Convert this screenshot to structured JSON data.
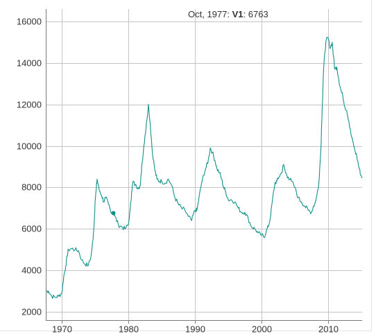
{
  "readout": {
    "date": "Oct, 1977",
    "sep1": ": ",
    "series": "V1",
    "sep2": ": ",
    "value": "6763"
  },
  "colors": {
    "line": "#12918b",
    "grid": "#c4c4c4",
    "axis": "#7a7a7a",
    "text": "#333333"
  },
  "chart_data": {
    "type": "line",
    "title": "",
    "xlabel": "",
    "ylabel": "",
    "xlim": [
      1967.6,
      2015.1
    ],
    "ylim": [
      1600,
      16600
    ],
    "x_ticks": [
      1970,
      1980,
      1990,
      2000,
      2010
    ],
    "y_ticks": [
      2000,
      4000,
      6000,
      8000,
      10000,
      12000,
      14000,
      16000
    ],
    "x_tick_labels": [
      "1970",
      "1980",
      "1990",
      "2000",
      "2010"
    ],
    "y_tick_labels": [
      "2000",
      "4000",
      "6000",
      "8000",
      "10000",
      "12000",
      "14000",
      "16000"
    ],
    "grid": true,
    "highlight": {
      "x": 1977.75,
      "y": 6763
    },
    "series": [
      {
        "points": [
          [
            1967.6,
            3000
          ],
          [
            1968.0,
            3000
          ],
          [
            1968.5,
            2750
          ],
          [
            1969.0,
            2700
          ],
          [
            1969.5,
            2750
          ],
          [
            1970.0,
            2900
          ],
          [
            1970.3,
            3700
          ],
          [
            1970.6,
            4200
          ],
          [
            1970.8,
            4700
          ],
          [
            1971.0,
            5000
          ],
          [
            1971.5,
            5050
          ],
          [
            1972.0,
            5000
          ],
          [
            1972.5,
            4950
          ],
          [
            1973.0,
            4500
          ],
          [
            1973.5,
            4300
          ],
          [
            1974.0,
            4250
          ],
          [
            1974.4,
            4700
          ],
          [
            1974.7,
            5500
          ],
          [
            1974.9,
            6500
          ],
          [
            1975.0,
            7300
          ],
          [
            1975.2,
            8000
          ],
          [
            1975.3,
            8400
          ],
          [
            1975.6,
            7900
          ],
          [
            1976.0,
            7600
          ],
          [
            1976.3,
            7300
          ],
          [
            1976.6,
            7500
          ],
          [
            1977.0,
            7200
          ],
          [
            1977.3,
            6900
          ],
          [
            1977.75,
            6763
          ],
          [
            1978.0,
            6600
          ],
          [
            1978.5,
            6200
          ],
          [
            1979.0,
            6100
          ],
          [
            1979.5,
            6000
          ],
          [
            1980.0,
            6200
          ],
          [
            1980.3,
            7000
          ],
          [
            1980.5,
            7800
          ],
          [
            1980.7,
            8300
          ],
          [
            1981.0,
            8100
          ],
          [
            1981.5,
            8000
          ],
          [
            1981.8,
            8100
          ],
          [
            1982.0,
            9000
          ],
          [
            1982.3,
            9900
          ],
          [
            1982.5,
            10500
          ],
          [
            1982.8,
            11300
          ],
          [
            1983.0,
            12000
          ],
          [
            1983.3,
            11000
          ],
          [
            1983.6,
            9700
          ],
          [
            1984.0,
            8800
          ],
          [
            1984.3,
            8400
          ],
          [
            1984.6,
            8300
          ],
          [
            1985.0,
            8300
          ],
          [
            1985.5,
            8200
          ],
          [
            1986.0,
            8400
          ],
          [
            1986.5,
            8100
          ],
          [
            1987.0,
            7500
          ],
          [
            1987.5,
            7200
          ],
          [
            1988.0,
            7000
          ],
          [
            1988.5,
            6900
          ],
          [
            1989.0,
            6600
          ],
          [
            1989.5,
            6400
          ],
          [
            1990.0,
            6900
          ],
          [
            1990.3,
            6900
          ],
          [
            1990.6,
            7500
          ],
          [
            1991.0,
            8200
          ],
          [
            1991.3,
            8600
          ],
          [
            1991.7,
            9000
          ],
          [
            1992.0,
            9300
          ],
          [
            1992.3,
            9900
          ],
          [
            1992.6,
            9700
          ],
          [
            1993.0,
            9300
          ],
          [
            1993.3,
            8900
          ],
          [
            1993.7,
            8700
          ],
          [
            1994.0,
            8400
          ],
          [
            1994.3,
            8000
          ],
          [
            1994.6,
            7800
          ],
          [
            1995.0,
            7400
          ],
          [
            1995.5,
            7400
          ],
          [
            1996.0,
            7300
          ],
          [
            1996.5,
            7000
          ],
          [
            1997.0,
            6800
          ],
          [
            1997.5,
            6800
          ],
          [
            1998.0,
            6500
          ],
          [
            1998.5,
            6100
          ],
          [
            1999.0,
            6000
          ],
          [
            1999.5,
            5800
          ],
          [
            2000.0,
            5700
          ],
          [
            2000.4,
            5600
          ],
          [
            2000.7,
            5900
          ],
          [
            2001.0,
            6100
          ],
          [
            2001.3,
            6500
          ],
          [
            2001.6,
            7300
          ],
          [
            2002.0,
            8200
          ],
          [
            2002.3,
            8300
          ],
          [
            2002.6,
            8500
          ],
          [
            2003.0,
            8700
          ],
          [
            2003.3,
            9100
          ],
          [
            2003.6,
            8700
          ],
          [
            2004.0,
            8500
          ],
          [
            2004.5,
            8300
          ],
          [
            2005.0,
            8000
          ],
          [
            2005.5,
            7500
          ],
          [
            2006.0,
            7300
          ],
          [
            2006.5,
            7100
          ],
          [
            2007.0,
            6900
          ],
          [
            2007.5,
            6800
          ],
          [
            2007.8,
            7100
          ],
          [
            2008.0,
            7200
          ],
          [
            2008.3,
            7600
          ],
          [
            2008.6,
            8200
          ],
          [
            2008.9,
            9800
          ],
          [
            2009.1,
            11800
          ],
          [
            2009.3,
            13600
          ],
          [
            2009.5,
            14500
          ],
          [
            2009.7,
            15100
          ],
          [
            2010.0,
            15200
          ],
          [
            2010.3,
            14700
          ],
          [
            2010.6,
            15000
          ],
          [
            2010.8,
            14300
          ],
          [
            2011.0,
            13700
          ],
          [
            2011.3,
            13800
          ],
          [
            2011.6,
            13200
          ],
          [
            2011.9,
            12700
          ],
          [
            2012.2,
            12400
          ],
          [
            2012.5,
            11900
          ],
          [
            2012.8,
            11700
          ],
          [
            2013.1,
            11200
          ],
          [
            2013.4,
            10600
          ],
          [
            2013.7,
            10200
          ],
          [
            2014.0,
            9800
          ],
          [
            2014.3,
            9500
          ],
          [
            2014.6,
            9000
          ],
          [
            2014.9,
            8600
          ],
          [
            2015.1,
            8500
          ]
        ]
      }
    ]
  }
}
